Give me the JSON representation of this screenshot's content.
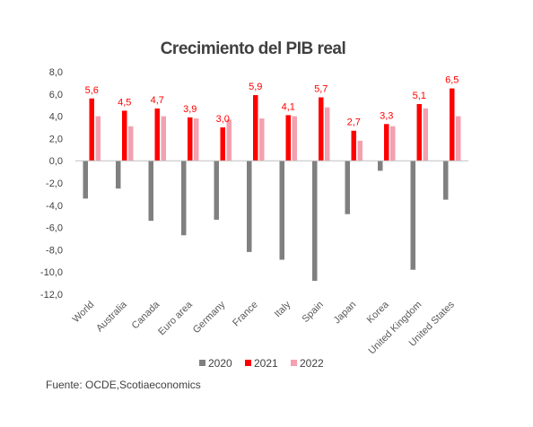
{
  "chart_data": {
    "type": "bar",
    "title": "Crecimiento del PIB real",
    "xlabel": "",
    "ylabel": "",
    "ylim": [
      -12,
      8
    ],
    "yticks": [
      "8,0",
      "6,0",
      "4,0",
      "2,0",
      "0,0",
      "-2,0",
      "-4,0",
      "-6,0",
      "-8,0",
      "-10,0",
      "-12,0"
    ],
    "categories": [
      "World",
      "Australia",
      "Canada",
      "Euro area",
      "Germany",
      "France",
      "Italy",
      "Spain",
      "Japan",
      "Korea",
      "United Kingdom",
      "United States"
    ],
    "series": [
      {
        "name": "2020",
        "color": "#808080",
        "values": [
          -3.4,
          -2.5,
          -5.4,
          -6.7,
          -5.3,
          -8.2,
          -8.9,
          -10.8,
          -4.8,
          -0.9,
          -9.8,
          -3.5
        ]
      },
      {
        "name": "2021",
        "color": "#ff0000",
        "values": [
          5.6,
          4.5,
          4.7,
          3.9,
          3.0,
          5.9,
          4.1,
          5.7,
          2.7,
          3.3,
          5.1,
          6.5
        ]
      },
      {
        "name": "2022",
        "color": "#f4a0b0",
        "values": [
          4.0,
          3.1,
          4.0,
          3.8,
          3.7,
          3.8,
          4.0,
          4.8,
          1.8,
          3.1,
          4.7,
          4.0
        ]
      }
    ],
    "data_labels": [
      "5,6",
      "4,5",
      "4,7",
      "3,9",
      "3,0",
      "5,9",
      "4,1",
      "5,7",
      "2,7",
      "3,3",
      "5,1",
      "6,5"
    ],
    "legend_position": "bottom",
    "grid": false
  },
  "source": "Fuente: OCDE,Scotiaeconomics"
}
